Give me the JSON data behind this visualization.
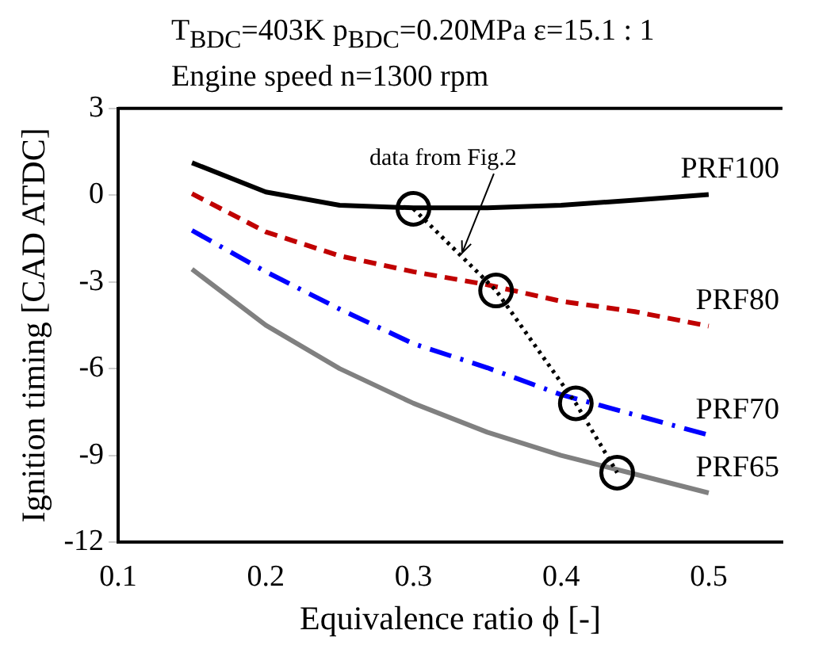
{
  "chart_data": {
    "type": "line",
    "title": "T$_{BDC}$=403K   p$_{BDC}$=0.20MPa   ε=15.1 : 1",
    "subtitle": "Engine speed  n=1300 rpm",
    "xlabel": "Equivalence ratio ϕ [-]",
    "ylabel": "Ignition timing [CAD ATDC]",
    "x": [
      0.15,
      0.2,
      0.25,
      0.3,
      0.35,
      0.4,
      0.45,
      0.5
    ],
    "series": [
      {
        "name": "PRF100",
        "color": "#000000",
        "line_style": "solid",
        "values": [
          1.12,
          0.11,
          -0.35,
          -0.44,
          -0.44,
          -0.35,
          -0.17,
          0.02
        ]
      },
      {
        "name": "PRF80",
        "color": "#c00000",
        "line_style": "dashed",
        "values": [
          0.05,
          -1.27,
          -2.1,
          -2.65,
          -3.1,
          -3.67,
          -4.03,
          -4.53
        ]
      },
      {
        "name": "PRF70",
        "color": "#0000ff",
        "line_style": "dashdot",
        "values": [
          -1.22,
          -2.65,
          -3.94,
          -5.14,
          -5.97,
          -6.9,
          -7.6,
          -8.3
        ]
      },
      {
        "name": "PRF65",
        "color": "#808080",
        "line_style": "solid",
        "values": [
          -2.56,
          -4.5,
          -6.0,
          -7.2,
          -8.2,
          -9.0,
          -9.65,
          -10.3
        ]
      },
      {
        "type": "line",
        "color": "#000000",
        "line_style": "dotted",
        "marker": "circle",
        "x": [
          0.3,
          0.356,
          0.41,
          0.438
        ],
        "values": [
          -0.47,
          -3.3,
          -7.2,
          -9.6
        ]
      }
    ],
    "annotations": [
      {
        "text": "data from Fig.2",
        "x": 0.333,
        "y": -2.0
      }
    ],
    "xlim": [
      0.1,
      0.55
    ],
    "xticks": [
      0.1,
      0.2,
      0.3,
      0.4,
      0.5
    ],
    "ylim": [
      -12,
      3
    ],
    "yticks": [
      -12,
      -9,
      -6,
      -3,
      0,
      3
    ],
    "grid": false,
    "legend": false,
    "marker": "none"
  }
}
